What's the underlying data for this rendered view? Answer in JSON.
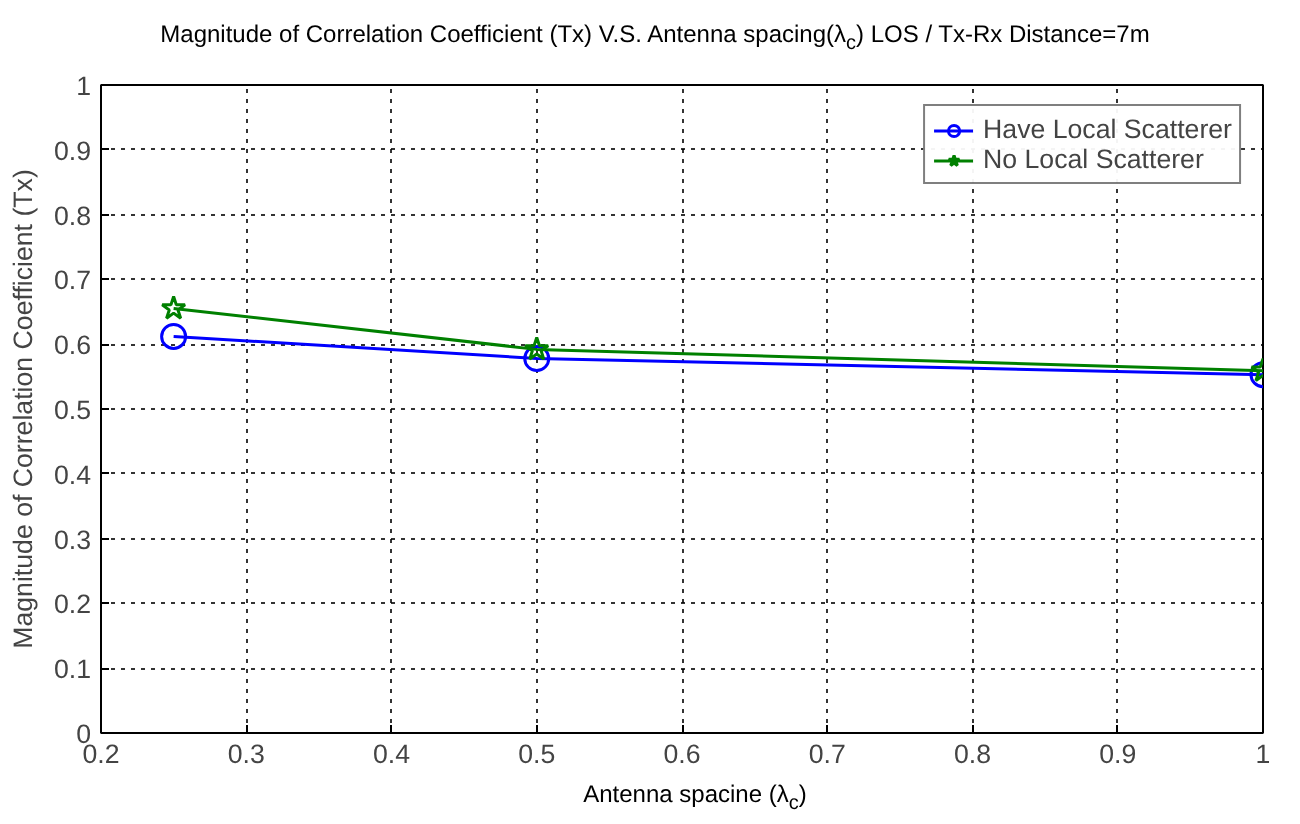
{
  "chart_data": {
    "type": "line",
    "title": "Magnitude of Correlation Coefficient (Tx) V.S. Antenna spacing(λ$_{c}$) LOS / Tx-Rx Distance=7m",
    "xlabel": "Antenna spacine (λ$_{c}$)",
    "ylabel": "Magnitude of Correlation Coefficient (Tx)",
    "x": [
      0.25,
      0.5,
      1
    ],
    "series": [
      {
        "name": "Have Local Scatterer",
        "color": "#0000ff",
        "values": [
          0.612,
          0.578,
          0.553
        ],
        "marker": "circle"
      },
      {
        "name": "No Local Scatterer",
        "color": "#008000",
        "values": [
          0.655,
          0.592,
          0.559
        ],
        "marker": "star"
      }
    ],
    "xlim": [
      0.2,
      1
    ],
    "ylim": [
      0,
      1
    ],
    "xticks": [
      0.2,
      0.3,
      0.4,
      0.5,
      0.6,
      0.7,
      0.8,
      0.9,
      1
    ],
    "yticks": [
      0,
      0.1,
      0.2,
      0.3,
      0.4,
      0.5,
      0.6,
      0.7,
      0.8,
      0.9,
      1
    ],
    "grid": true,
    "legend": "top right",
    "line_style": "solid"
  }
}
